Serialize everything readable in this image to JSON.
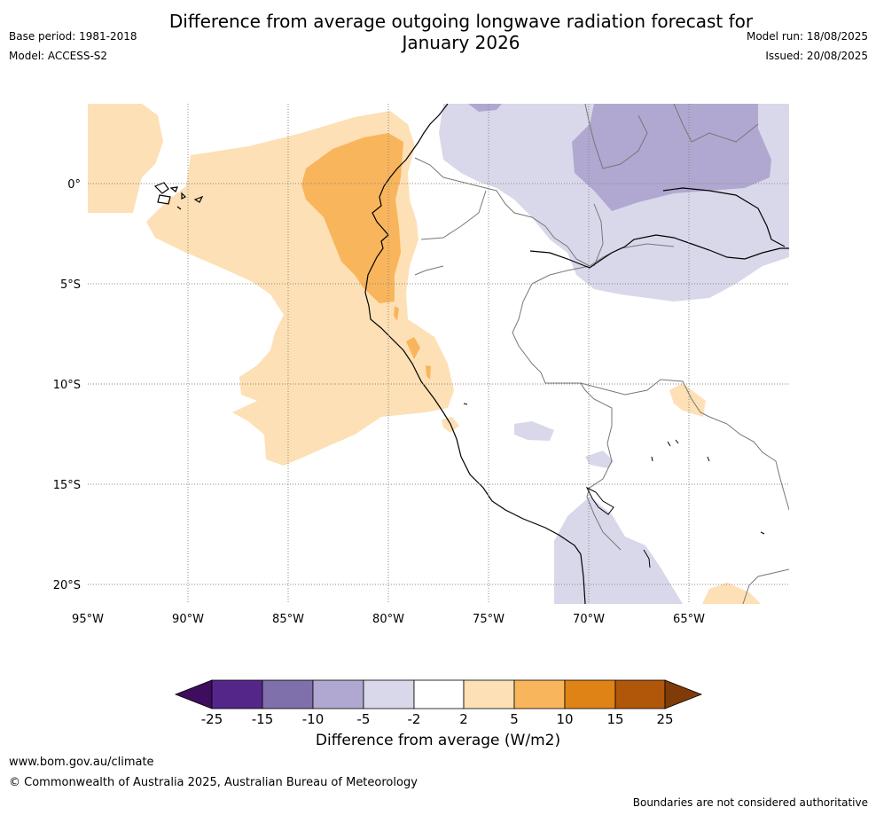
{
  "title": "Difference from average outgoing longwave radiation forecast for January 2026",
  "title_line1": "Difference from average outgoing longwave radiation forecast for",
  "title_line2": "January 2026",
  "base_period": "Base period: 1981-2018",
  "model": "Model: ACCESS-S2",
  "model_run": "Model run: 18/08/2025",
  "issued": "Issued: 20/08/2025",
  "lon_ticks": [
    "95°W",
    "90°W",
    "85°W",
    "80°W",
    "75°W",
    "70°W",
    "65°W"
  ],
  "lat_ticks": [
    "0°",
    "5°S",
    "10°S",
    "15°S",
    "20°S"
  ],
  "colorbar": {
    "title": "Difference from average (W/m2)",
    "labels": [
      "-25",
      "-15",
      "-10",
      "-5",
      "-2",
      "2",
      "5",
      "10",
      "15",
      "25"
    ],
    "colors": [
      "#3f0d5e",
      "#54268a",
      "#7f6faa",
      "#b0a8d0",
      "#d8d8ea",
      "#ffffff",
      "#fde0b5",
      "#f9b55c",
      "#e08317",
      "#b15709",
      "#7f3b08"
    ]
  },
  "footer": {
    "website": "www.bom.gov.au/climate",
    "copyright": "© Commonwealth of Australia 2025, Australian Bureau of Meteorology",
    "disclaimer": "Boundaries are not considered authoritative"
  }
}
